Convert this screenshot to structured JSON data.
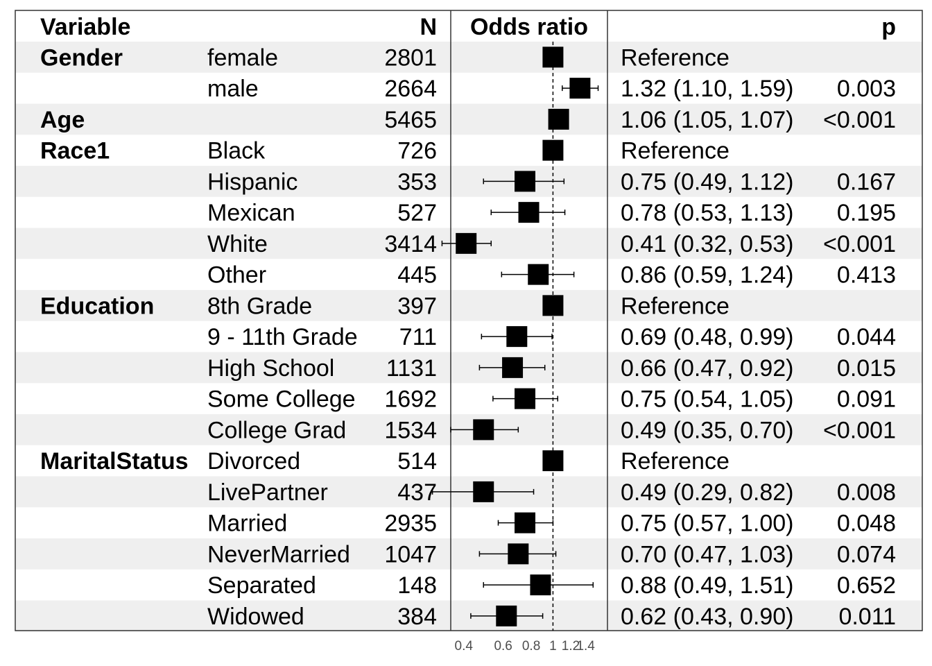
{
  "headers": {
    "variable": "Variable",
    "n": "N",
    "odds_ratio": "Odds ratio",
    "p": "p"
  },
  "colors": {
    "band": "#efefef",
    "marker": "#000000",
    "frame": "#333333",
    "tick_text": "#4d4d4d"
  },
  "chart_data": {
    "type": "forest",
    "xlabel": "",
    "x_scale": "log",
    "reference_line": 1,
    "xlim": [
      0.35,
      1.75
    ],
    "x_ticks": [
      0.4,
      0.6,
      0.8,
      1,
      1.2,
      1.4
    ],
    "x_tick_labels": [
      "0.4",
      "0.6",
      "0.8",
      "1",
      "1.2",
      "1.4"
    ],
    "rows": [
      {
        "group": "Gender",
        "level": "female",
        "n": "2801",
        "or": 1,
        "lo": null,
        "hi": null,
        "est_text": "Reference",
        "p": ""
      },
      {
        "group": "",
        "level": "male",
        "n": "2664",
        "or": 1.32,
        "lo": 1.1,
        "hi": 1.59,
        "est_text": "1.32 (1.10, 1.59)",
        "p": "0.003"
      },
      {
        "group": "Age",
        "level": "",
        "n": "5465",
        "or": 1.06,
        "lo": 1.05,
        "hi": 1.07,
        "est_text": "1.06 (1.05, 1.07)",
        "p": "<0.001"
      },
      {
        "group": "Race1",
        "level": "Black",
        "n": "726",
        "or": 1,
        "lo": null,
        "hi": null,
        "est_text": "Reference",
        "p": ""
      },
      {
        "group": "",
        "level": "Hispanic",
        "n": "353",
        "or": 0.75,
        "lo": 0.49,
        "hi": 1.12,
        "est_text": "0.75 (0.49, 1.12)",
        "p": "0.167"
      },
      {
        "group": "",
        "level": "Mexican",
        "n": "527",
        "or": 0.78,
        "lo": 0.53,
        "hi": 1.13,
        "est_text": "0.78 (0.53, 1.13)",
        "p": "0.195"
      },
      {
        "group": "",
        "level": "White",
        "n": "3414",
        "or": 0.41,
        "lo": 0.32,
        "hi": 0.53,
        "est_text": "0.41 (0.32, 0.53)",
        "p": "<0.001"
      },
      {
        "group": "",
        "level": "Other",
        "n": "445",
        "or": 0.86,
        "lo": 0.59,
        "hi": 1.24,
        "est_text": "0.86 (0.59, 1.24)",
        "p": "0.413"
      },
      {
        "group": "Education",
        "level": "8th Grade",
        "n": "397",
        "or": 1,
        "lo": null,
        "hi": null,
        "est_text": "Reference",
        "p": ""
      },
      {
        "group": "",
        "level": "9 - 11th Grade",
        "n": "711",
        "or": 0.69,
        "lo": 0.48,
        "hi": 0.99,
        "est_text": "0.69 (0.48, 0.99)",
        "p": "0.044"
      },
      {
        "group": "",
        "level": "High School",
        "n": "1131",
        "or": 0.66,
        "lo": 0.47,
        "hi": 0.92,
        "est_text": "0.66 (0.47, 0.92)",
        "p": "0.015"
      },
      {
        "group": "",
        "level": "Some College",
        "n": "1692",
        "or": 0.75,
        "lo": 0.54,
        "hi": 1.05,
        "est_text": "0.75 (0.54, 1.05)",
        "p": "0.091"
      },
      {
        "group": "",
        "level": "College Grad",
        "n": "1534",
        "or": 0.49,
        "lo": 0.35,
        "hi": 0.7,
        "est_text": "0.49 (0.35, 0.70)",
        "p": "<0.001"
      },
      {
        "group": "MaritalStatus",
        "level": "Divorced",
        "n": "514",
        "or": 1,
        "lo": null,
        "hi": null,
        "est_text": "Reference",
        "p": ""
      },
      {
        "group": "",
        "level": "LivePartner",
        "n": "437",
        "or": 0.49,
        "lo": 0.29,
        "hi": 0.82,
        "est_text": "0.49 (0.29, 0.82)",
        "p": "0.008"
      },
      {
        "group": "",
        "level": "Married",
        "n": "2935",
        "or": 0.75,
        "lo": 0.57,
        "hi": 1.0,
        "est_text": "0.75 (0.57, 1.00)",
        "p": "0.048"
      },
      {
        "group": "",
        "level": "NeverMarried",
        "n": "1047",
        "or": 0.7,
        "lo": 0.47,
        "hi": 1.03,
        "est_text": "0.70 (0.47, 1.03)",
        "p": "0.074"
      },
      {
        "group": "",
        "level": "Separated",
        "n": "148",
        "or": 0.88,
        "lo": 0.49,
        "hi": 1.51,
        "est_text": "0.88 (0.49, 1.51)",
        "p": "0.652"
      },
      {
        "group": "",
        "level": "Widowed",
        "n": "384",
        "or": 0.62,
        "lo": 0.43,
        "hi": 0.9,
        "est_text": "0.62 (0.43, 0.90)",
        "p": "0.011"
      }
    ]
  }
}
